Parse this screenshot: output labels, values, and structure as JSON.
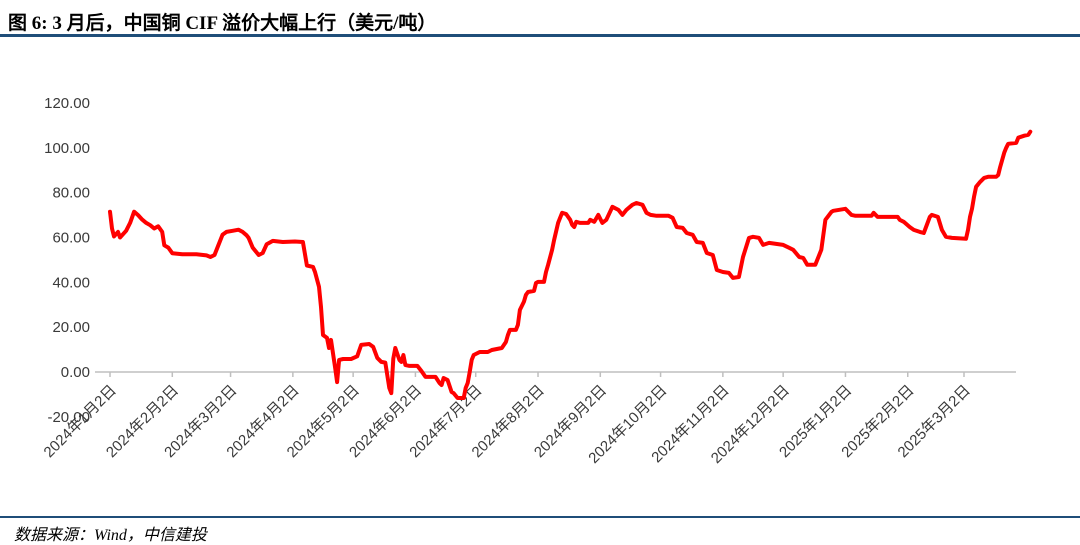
{
  "header": {
    "title": "图 6: 3 月后，中国铜 CIF 溢价大幅上行（美元/吨）"
  },
  "footer": {
    "source": "数据来源：Wind，中信建投"
  },
  "colors": {
    "accent_rule": "#1F4E79",
    "line": "#FF0000",
    "axis": "#BFBFBF",
    "tick_text": "#3a3a3a"
  },
  "chart_data": {
    "type": "line",
    "title": "图 6: 3 月后，中国铜 CIF 溢价大幅上行（美元/吨）",
    "unit": "美元/吨",
    "xlabel": "",
    "ylabel": "",
    "ylim": [
      -20,
      120
    ],
    "xlim_days": [
      0,
      460
    ],
    "grid": false,
    "legend": "none",
    "x_note": "points given as [days since 2024-01-02, premium in USD/ton]",
    "y_ticks": [
      120,
      100,
      80,
      60,
      40,
      20,
      0,
      -20
    ],
    "y_tick_labels": [
      "120.00",
      "100.00",
      "80.00",
      "60.00",
      "40.00",
      "20.00",
      "0.00",
      "-20.00"
    ],
    "x_ticks": [
      {
        "day": 0,
        "label": "2024年1月2日"
      },
      {
        "day": 31,
        "label": "2024年2月2日"
      },
      {
        "day": 60,
        "label": "2024年3月2日"
      },
      {
        "day": 91,
        "label": "2024年4月2日"
      },
      {
        "day": 121,
        "label": "2024年5月2日"
      },
      {
        "day": 152,
        "label": "2024年6月2日"
      },
      {
        "day": 182,
        "label": "2024年7月2日"
      },
      {
        "day": 213,
        "label": "2024年8月2日"
      },
      {
        "day": 244,
        "label": "2024年9月2日"
      },
      {
        "day": 274,
        "label": "2024年10月2日"
      },
      {
        "day": 305,
        "label": "2024年11月2日"
      },
      {
        "day": 335,
        "label": "2024年12月2日"
      },
      {
        "day": 366,
        "label": "2025年1月2日"
      },
      {
        "day": 397,
        "label": "2025年2月2日"
      },
      {
        "day": 425,
        "label": "2025年3月2日"
      }
    ],
    "series": [
      {
        "name": "中国铜CIF溢价",
        "color": "#FF0000",
        "points": [
          [
            0,
            71.5
          ],
          [
            1,
            64
          ],
          [
            2,
            60.5
          ],
          [
            4,
            62.5
          ],
          [
            5,
            60
          ],
          [
            8,
            63
          ],
          [
            10,
            66.5
          ],
          [
            12,
            71.5
          ],
          [
            14,
            70
          ],
          [
            16,
            68
          ],
          [
            18,
            66.5
          ],
          [
            20,
            65.5
          ],
          [
            22,
            64
          ],
          [
            24,
            65
          ],
          [
            26,
            62.5
          ],
          [
            27,
            56.5
          ],
          [
            29,
            55.5
          ],
          [
            31,
            53
          ],
          [
            36,
            52.5
          ],
          [
            43,
            52.5
          ],
          [
            48,
            52
          ],
          [
            50,
            51.3
          ],
          [
            52,
            52.2
          ],
          [
            54,
            56.7
          ],
          [
            56,
            61.2
          ],
          [
            58,
            62.5
          ],
          [
            61,
            63
          ],
          [
            64,
            63.5
          ],
          [
            66,
            62.5
          ],
          [
            68,
            61
          ],
          [
            69,
            59.8
          ],
          [
            71,
            55.5
          ],
          [
            74,
            52.2
          ],
          [
            76,
            53.1
          ],
          [
            78,
            57
          ],
          [
            81,
            58.5
          ],
          [
            86,
            58
          ],
          [
            92,
            58.2
          ],
          [
            96,
            58
          ],
          [
            98,
            47.5
          ],
          [
            101,
            46.9
          ],
          [
            102,
            44.6
          ],
          [
            104,
            38
          ],
          [
            105,
            29
          ],
          [
            106,
            16.5
          ],
          [
            108,
            15.2
          ],
          [
            109,
            10.7
          ],
          [
            110,
            14.3
          ],
          [
            112,
            2
          ],
          [
            113,
            -4.5
          ],
          [
            114,
            5.4
          ],
          [
            116,
            5.8
          ],
          [
            120,
            5.8
          ],
          [
            123,
            7
          ],
          [
            125,
            12.1
          ],
          [
            129,
            12.5
          ],
          [
            131,
            11.2
          ],
          [
            133,
            6.3
          ],
          [
            135,
            4.5
          ],
          [
            137,
            4.2
          ],
          [
            139,
            -7.1
          ],
          [
            140,
            -9.4
          ],
          [
            141,
            6
          ],
          [
            142,
            10.7
          ],
          [
            144,
            5.4
          ],
          [
            145,
            4.5
          ],
          [
            146,
            7.6
          ],
          [
            147,
            3.1
          ],
          [
            149,
            2.7
          ],
          [
            153,
            2.7
          ],
          [
            155,
            0.4
          ],
          [
            157,
            -2.2
          ],
          [
            162,
            -2.2
          ],
          [
            164,
            -4.9
          ],
          [
            165,
            -5.8
          ],
          [
            166,
            -2.7
          ],
          [
            168,
            -3.6
          ],
          [
            170,
            -8.9
          ],
          [
            171,
            -9.4
          ],
          [
            173,
            -11.6
          ],
          [
            176,
            -11.6
          ],
          [
            177,
            -7.1
          ],
          [
            178,
            -4.9
          ],
          [
            179,
            0
          ],
          [
            180,
            5.4
          ],
          [
            181,
            7.6
          ],
          [
            184,
            8.9
          ],
          [
            188,
            8.9
          ],
          [
            190,
            9.8
          ],
          [
            195,
            10.7
          ],
          [
            197,
            13.4
          ],
          [
            198,
            16.5
          ],
          [
            199,
            18.8
          ],
          [
            202,
            18.8
          ],
          [
            203,
            21
          ],
          [
            204,
            27.7
          ],
          [
            206,
            31.3
          ],
          [
            207,
            34.4
          ],
          [
            208,
            35.7
          ],
          [
            211,
            36.2
          ],
          [
            212,
            39.7
          ],
          [
            213,
            40.2
          ],
          [
            216,
            40.2
          ],
          [
            217,
            44.6
          ],
          [
            218,
            47.8
          ],
          [
            220,
            54.5
          ],
          [
            221,
            58.9
          ],
          [
            223,
            66.5
          ],
          [
            225,
            71
          ],
          [
            227,
            70.5
          ],
          [
            229,
            67.9
          ],
          [
            230,
            65.6
          ],
          [
            231,
            64.7
          ],
          [
            232,
            67
          ],
          [
            234,
            66.5
          ],
          [
            238,
            66.5
          ],
          [
            239,
            67.9
          ],
          [
            241,
            67
          ],
          [
            243,
            70.1
          ],
          [
            245,
            66.5
          ],
          [
            247,
            67.9
          ],
          [
            250,
            73.7
          ],
          [
            253,
            72.3
          ],
          [
            255,
            70.1
          ],
          [
            257,
            72.3
          ],
          [
            260,
            74.6
          ],
          [
            262,
            75.4
          ],
          [
            265,
            74.6
          ],
          [
            267,
            71
          ],
          [
            269,
            70.1
          ],
          [
            272,
            69.7
          ],
          [
            278,
            69.7
          ],
          [
            280,
            68.8
          ],
          [
            282,
            64.7
          ],
          [
            285,
            64.3
          ],
          [
            287,
            62
          ],
          [
            290,
            61.2
          ],
          [
            292,
            58
          ],
          [
            295,
            57.6
          ],
          [
            297,
            53.1
          ],
          [
            300,
            52.2
          ],
          [
            302,
            45.5
          ],
          [
            305,
            44.6
          ],
          [
            308,
            44.2
          ],
          [
            310,
            42
          ],
          [
            313,
            42.4
          ],
          [
            315,
            51.3
          ],
          [
            318,
            59.8
          ],
          [
            320,
            60.3
          ],
          [
            323,
            59.8
          ],
          [
            325,
            56.7
          ],
          [
            328,
            57.6
          ],
          [
            335,
            56.7
          ],
          [
            338,
            55.4
          ],
          [
            340,
            54.5
          ],
          [
            343,
            51.3
          ],
          [
            345,
            50.9
          ],
          [
            347,
            47.8
          ],
          [
            351,
            47.8
          ],
          [
            354,
            54.5
          ],
          [
            356,
            67.9
          ],
          [
            359,
            71.4
          ],
          [
            360,
            71.9
          ],
          [
            366,
            72.8
          ],
          [
            369,
            70.1
          ],
          [
            371,
            69.7
          ],
          [
            379,
            69.7
          ],
          [
            380,
            71
          ],
          [
            382,
            69.2
          ],
          [
            392,
            69.2
          ],
          [
            393,
            67.9
          ],
          [
            395,
            67
          ],
          [
            398,
            64.7
          ],
          [
            400,
            63.4
          ],
          [
            403,
            62.5
          ],
          [
            405,
            62
          ],
          [
            408,
            69.2
          ],
          [
            409,
            70.1
          ],
          [
            412,
            69.2
          ],
          [
            414,
            63.4
          ],
          [
            416,
            60.3
          ],
          [
            419,
            59.8
          ],
          [
            426,
            59.4
          ],
          [
            427,
            63.4
          ],
          [
            428,
            69.2
          ],
          [
            429,
            72.8
          ],
          [
            430,
            78.1
          ],
          [
            431,
            82.6
          ],
          [
            433,
            84.8
          ],
          [
            435,
            86.6
          ],
          [
            437,
            87.1
          ],
          [
            441,
            87.1
          ],
          [
            442,
            87.9
          ],
          [
            443,
            91.5
          ],
          [
            445,
            97.8
          ],
          [
            446,
            100
          ],
          [
            447,
            101.8
          ],
          [
            451,
            102.2
          ],
          [
            452,
            104.5
          ],
          [
            455,
            105.4
          ],
          [
            457,
            105.8
          ],
          [
            458,
            107.2
          ]
        ]
      }
    ]
  }
}
